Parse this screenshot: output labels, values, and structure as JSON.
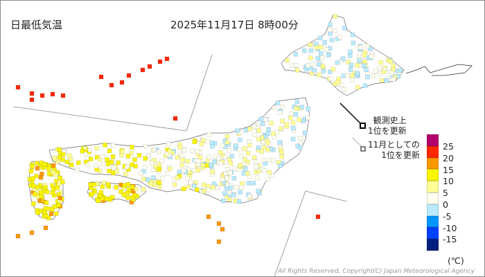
{
  "header": {
    "title": "日最低気温",
    "datetime": "2025年11月17日 8時00分"
  },
  "notes": {
    "record_all": [
      "観測史上",
      "1位を更新"
    ],
    "record_month": [
      "11月としての",
      "1位を更新"
    ]
  },
  "legend": {
    "colors": [
      "#b4006a",
      "#ff2800",
      "#ff9900",
      "#faf500",
      "#ffff96",
      "#fffff0",
      "#b9ebff",
      "#0096ff",
      "#0041ff",
      "#002080"
    ],
    "ticks": [
      "25",
      "20",
      "15",
      "10",
      "5",
      "0",
      "-5",
      "-10",
      "-15"
    ],
    "unit": "(℃)"
  },
  "copyright": "All Rights Reserved, Copyright(C) Japan Meteorological Agency"
}
